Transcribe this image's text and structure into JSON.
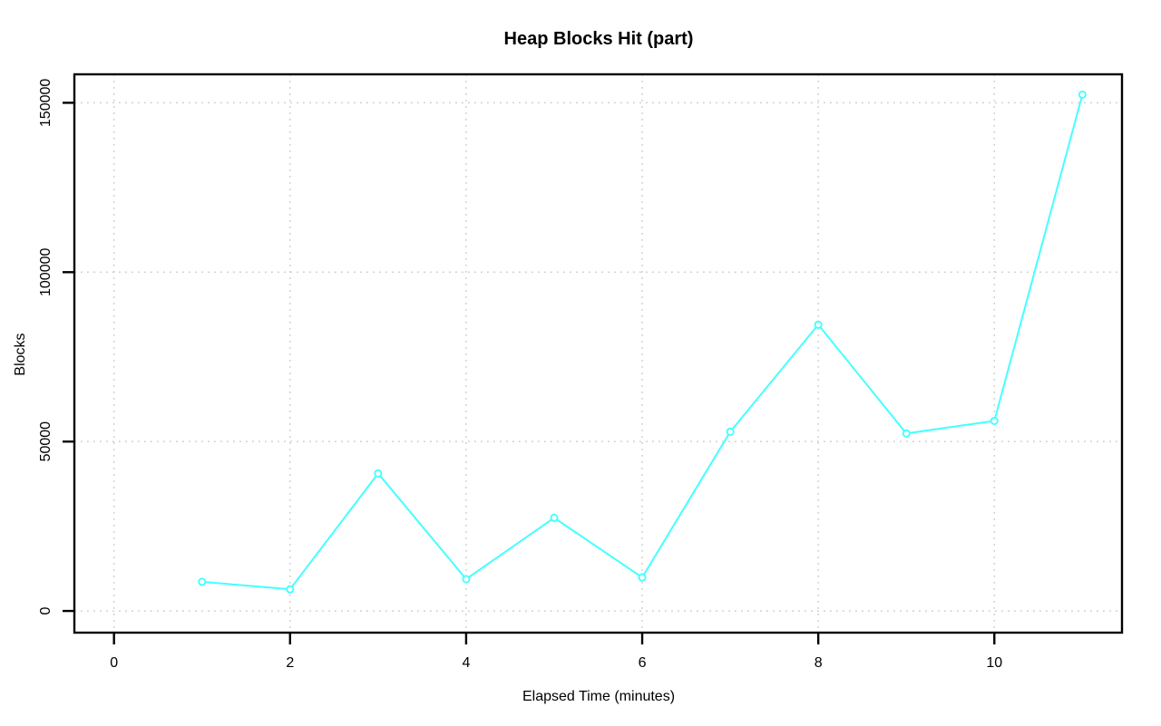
{
  "chart_data": {
    "type": "line",
    "title": "Heap Blocks Hit (part)",
    "xlabel": "Elapsed Time (minutes)",
    "ylabel": "Blocks",
    "x": [
      1,
      2,
      3,
      4,
      5,
      6,
      7,
      8,
      9,
      10,
      11
    ],
    "values": [
      8600,
      6400,
      40600,
      9400,
      27500,
      9900,
      52900,
      84500,
      52400,
      56100,
      152400
    ],
    "series_name": "Heap blocks hit",
    "xticks": [
      0,
      2,
      4,
      6,
      8,
      10
    ],
    "xtick_labels": [
      "0",
      "2",
      "4",
      "6",
      "8",
      "10"
    ],
    "yticks": [
      0,
      50000,
      100000,
      150000
    ],
    "ytick_labels": [
      "0",
      "50000",
      "100000",
      "150000"
    ],
    "xlim": [
      -0.45,
      11.45
    ],
    "ylim": [
      -6400,
      158400
    ],
    "grid": "dotted",
    "legend_position": "none",
    "marker": "open-circle",
    "colors": {
      "line": "#45ffff",
      "marker_stroke": "#45ffff",
      "marker_fill": "#ffffff",
      "grid": "#cdcdcd",
      "axis": "#000000",
      "background": "#ffffff"
    }
  }
}
